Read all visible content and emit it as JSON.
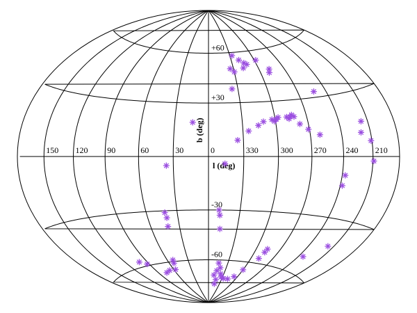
{
  "chart_data": {
    "type": "scatter",
    "projection": "aitoff-hammer all-sky, center l=0",
    "title": "",
    "xlabel": "l (deg)",
    "ylabel": "b (deg)",
    "x_tick_labels": [
      "210",
      "240",
      "270",
      "300",
      "330",
      "0",
      "30",
      "60",
      "90",
      "120",
      "150"
    ],
    "y_tick_labels": [
      "+60",
      "+30",
      "-30",
      "-60"
    ],
    "meridian_step_deg": 30,
    "parallel_step_deg": 30,
    "grid": true,
    "marker": "asterisk",
    "marker_color": "#9b4fe0",
    "points": [
      {
        "l": 312,
        "b": 52
      },
      {
        "l": 315,
        "b": 53
      },
      {
        "l": 318,
        "b": 50
      },
      {
        "l": 320,
        "b": 55
      },
      {
        "l": 327,
        "b": 58
      },
      {
        "l": 330,
        "b": 48
      },
      {
        "l": 334,
        "b": 50
      },
      {
        "l": 290,
        "b": 46
      },
      {
        "l": 288,
        "b": 48
      },
      {
        "l": 298,
        "b": 54
      },
      {
        "l": 336,
        "b": 38
      },
      {
        "l": 253,
        "b": 33
      },
      {
        "l": 282,
        "b": 21
      },
      {
        "l": 284,
        "b": 22
      },
      {
        "l": 286,
        "b": 21
      },
      {
        "l": 287,
        "b": 20
      },
      {
        "l": 289,
        "b": 21
      },
      {
        "l": 297,
        "b": 21
      },
      {
        "l": 299,
        "b": 20
      },
      {
        "l": 301,
        "b": 19
      },
      {
        "l": 303,
        "b": 20
      },
      {
        "l": 311,
        "b": 19
      },
      {
        "l": 278,
        "b": 17
      },
      {
        "l": 271,
        "b": 14
      },
      {
        "l": 316,
        "b": 17
      },
      {
        "l": 325,
        "b": 14
      },
      {
        "l": 261,
        "b": 11
      },
      {
        "l": 335,
        "b": 9
      },
      {
        "l": 14,
        "b": 19
      },
      {
        "l": 217,
        "b": 16
      },
      {
        "l": 220,
        "b": 11
      },
      {
        "l": 211,
        "b": 7
      },
      {
        "l": 209,
        "b": -2
      },
      {
        "l": 346,
        "b": -4
      },
      {
        "l": 36,
        "b": -5
      },
      {
        "l": 237,
        "b": -9
      },
      {
        "l": 238,
        "b": -14
      },
      {
        "l": 350,
        "b": -30
      },
      {
        "l": 349,
        "b": -33
      },
      {
        "l": 348,
        "b": -41
      },
      {
        "l": 42,
        "b": -31
      },
      {
        "l": 41,
        "b": -34
      },
      {
        "l": 42,
        "b": -39
      },
      {
        "l": 217,
        "b": -43
      },
      {
        "l": 234,
        "b": -51
      },
      {
        "l": 286,
        "b": -51
      },
      {
        "l": 287,
        "b": -53
      },
      {
        "l": 289,
        "b": -57
      },
      {
        "l": 300,
        "b": -65
      },
      {
        "l": 307,
        "b": -70
      },
      {
        "l": 317,
        "b": -72
      },
      {
        "l": 327,
        "b": -72
      },
      {
        "l": 333,
        "b": -71
      },
      {
        "l": 336,
        "b": -69
      },
      {
        "l": 340,
        "b": -65
      },
      {
        "l": 344,
        "b": -62
      },
      {
        "l": 345,
        "b": -67
      },
      {
        "l": 343,
        "b": -73
      },
      {
        "l": 349,
        "b": -70
      },
      {
        "l": 344,
        "b": -76
      },
      {
        "l": 52,
        "b": -59
      },
      {
        "l": 53,
        "b": -61
      },
      {
        "l": 57,
        "b": -65
      },
      {
        "l": 68,
        "b": -65
      },
      {
        "l": 76,
        "b": -66
      },
      {
        "l": 93,
        "b": -59
      },
      {
        "l": 101,
        "b": -57
      }
    ]
  }
}
